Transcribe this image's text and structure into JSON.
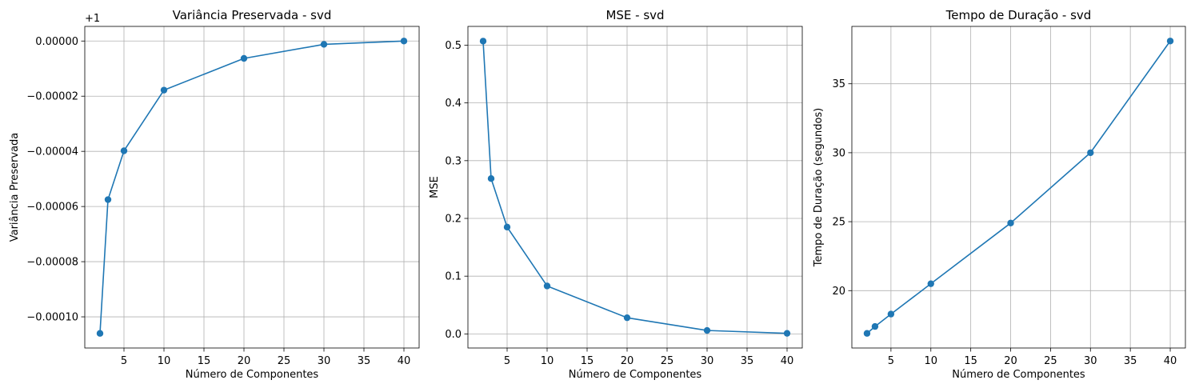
{
  "chart_data": [
    {
      "type": "line",
      "title": "Variância Preservada - svd",
      "xlabel": "Número de Componentes",
      "ylabel": "Variância Preservada",
      "offset_label": "+1",
      "x": [
        2,
        3,
        5,
        10,
        20,
        30,
        40
      ],
      "y": [
        -0.000106,
        -5.75e-05,
        -3.98e-05,
        -1.78e-05,
        -6.3e-06,
        -1.2e-06,
        0.0
      ],
      "xlim": [
        0.1,
        41.9
      ],
      "ylim": [
        -0.0001113,
        5.3e-06
      ],
      "xticks": [
        5,
        10,
        15,
        20,
        25,
        30,
        35,
        40
      ],
      "xtick_labels": [
        "5",
        "10",
        "15",
        "20",
        "25",
        "30",
        "35",
        "40"
      ],
      "yticks": [
        -0.0001,
        -8e-05,
        -6e-05,
        -4e-05,
        -2e-05,
        0.0
      ],
      "ytick_labels": [
        "−0.00010",
        "−0.00008",
        "−0.00006",
        "−0.00004",
        "−0.00002",
        "0.00000"
      ],
      "grid": true,
      "color": "#1f77b4",
      "marker": "circle"
    },
    {
      "type": "line",
      "title": "MSE - svd",
      "xlabel": "Número de Componentes",
      "ylabel": "MSE",
      "x": [
        2,
        3,
        5,
        10,
        20,
        30,
        40
      ],
      "y": [
        0.507,
        0.269,
        0.185,
        0.083,
        0.028,
        0.006,
        0.001
      ],
      "xlim": [
        0.1,
        41.9
      ],
      "ylim": [
        -0.0244,
        0.5325
      ],
      "xticks": [
        5,
        10,
        15,
        20,
        25,
        30,
        35,
        40
      ],
      "xtick_labels": [
        "5",
        "10",
        "15",
        "20",
        "25",
        "30",
        "35",
        "40"
      ],
      "yticks": [
        0.0,
        0.1,
        0.2,
        0.3,
        0.4,
        0.5
      ],
      "ytick_labels": [
        "0.0",
        "0.1",
        "0.2",
        "0.3",
        "0.4",
        "0.5"
      ],
      "grid": true,
      "color": "#1f77b4",
      "marker": "circle"
    },
    {
      "type": "line",
      "title": "Tempo de Duração - svd",
      "xlabel": "Número de Componentes",
      "ylabel": "Tempo de Duração (segundos)",
      "x": [
        2,
        3,
        5,
        10,
        20,
        30,
        40
      ],
      "y": [
        16.9,
        17.4,
        18.3,
        20.5,
        24.9,
        30.0,
        38.1
      ],
      "xlim": [
        0.1,
        41.9
      ],
      "ylim": [
        15.84,
        39.16
      ],
      "xticks": [
        5,
        10,
        15,
        20,
        25,
        30,
        35,
        40
      ],
      "xtick_labels": [
        "5",
        "10",
        "15",
        "20",
        "25",
        "30",
        "35",
        "40"
      ],
      "yticks": [
        20,
        25,
        30,
        35
      ],
      "ytick_labels": [
        "20",
        "25",
        "30",
        "35"
      ],
      "grid": true,
      "color": "#1f77b4",
      "marker": "circle"
    }
  ]
}
